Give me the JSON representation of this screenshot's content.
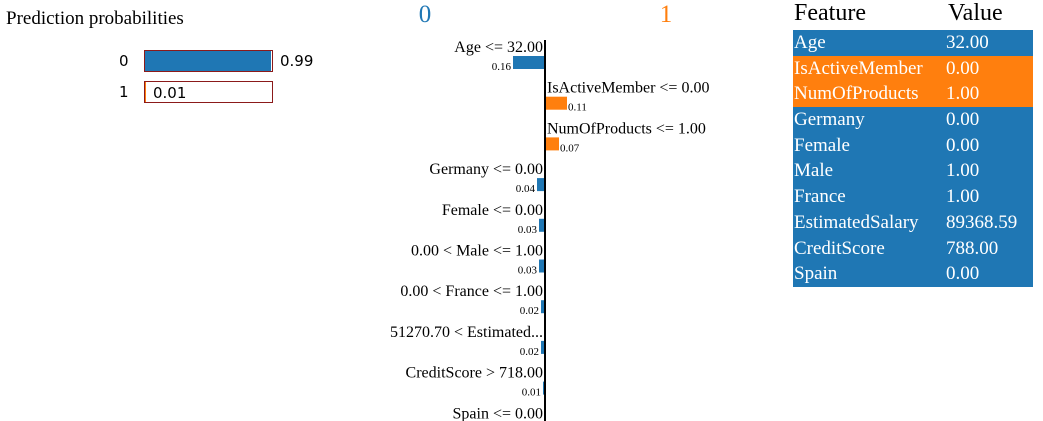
{
  "colors": {
    "class0": "#1f77b4",
    "class1": "#ff7f0e"
  },
  "prediction": {
    "title": "Prediction probabilities",
    "rows": [
      {
        "label": "0",
        "value": 0.99,
        "value_text": "0.99",
        "color": "#1f77b4"
      },
      {
        "label": "1",
        "value": 0.01,
        "value_text": "0.01",
        "color": "#ff7f0e"
      }
    ]
  },
  "chart_data": {
    "type": "bar",
    "orientation": "horizontal",
    "class_labels": [
      "0",
      "1"
    ],
    "categories": [
      "Age <= 32.00",
      "IsActiveMember <= 0.00",
      "NumOfProducts <= 1.00",
      "Germany <= 0.00",
      "Female <= 0.00",
      "0.00 < Male <= 1.00",
      "0.00 < France <= 1.00",
      "51270.70 < Estimated...",
      "CreditScore > 718.00",
      "Spain <= 0.00"
    ],
    "values": [
      0.16,
      0.11,
      0.07,
      0.04,
      0.03,
      0.03,
      0.02,
      0.02,
      0.01,
      0.0
    ],
    "value_labels": [
      "0.16",
      "0.11",
      "0.07",
      "0.04",
      "0.03",
      "0.03",
      "0.02",
      "0.02",
      "0.01",
      ""
    ],
    "supports": [
      "0",
      "1",
      "1",
      "0",
      "0",
      "0",
      "0",
      "0",
      "0",
      "0"
    ]
  },
  "feature_table": {
    "header": {
      "feature": "Feature",
      "value": "Value"
    },
    "rows": [
      {
        "feature": "Age",
        "value": "32.00",
        "class": "0"
      },
      {
        "feature": "IsActiveMember",
        "value": "0.00",
        "class": "1"
      },
      {
        "feature": "NumOfProducts",
        "value": "1.00",
        "class": "1"
      },
      {
        "feature": "Germany",
        "value": "0.00",
        "class": "0"
      },
      {
        "feature": "Female",
        "value": "0.00",
        "class": "0"
      },
      {
        "feature": "Male",
        "value": "1.00",
        "class": "0"
      },
      {
        "feature": "France",
        "value": "1.00",
        "class": "0"
      },
      {
        "feature": "EstimatedSalary",
        "value": "89368.59",
        "class": "0"
      },
      {
        "feature": "CreditScore",
        "value": "788.00",
        "class": "0"
      },
      {
        "feature": "Spain",
        "value": "0.00",
        "class": "0"
      }
    ]
  }
}
